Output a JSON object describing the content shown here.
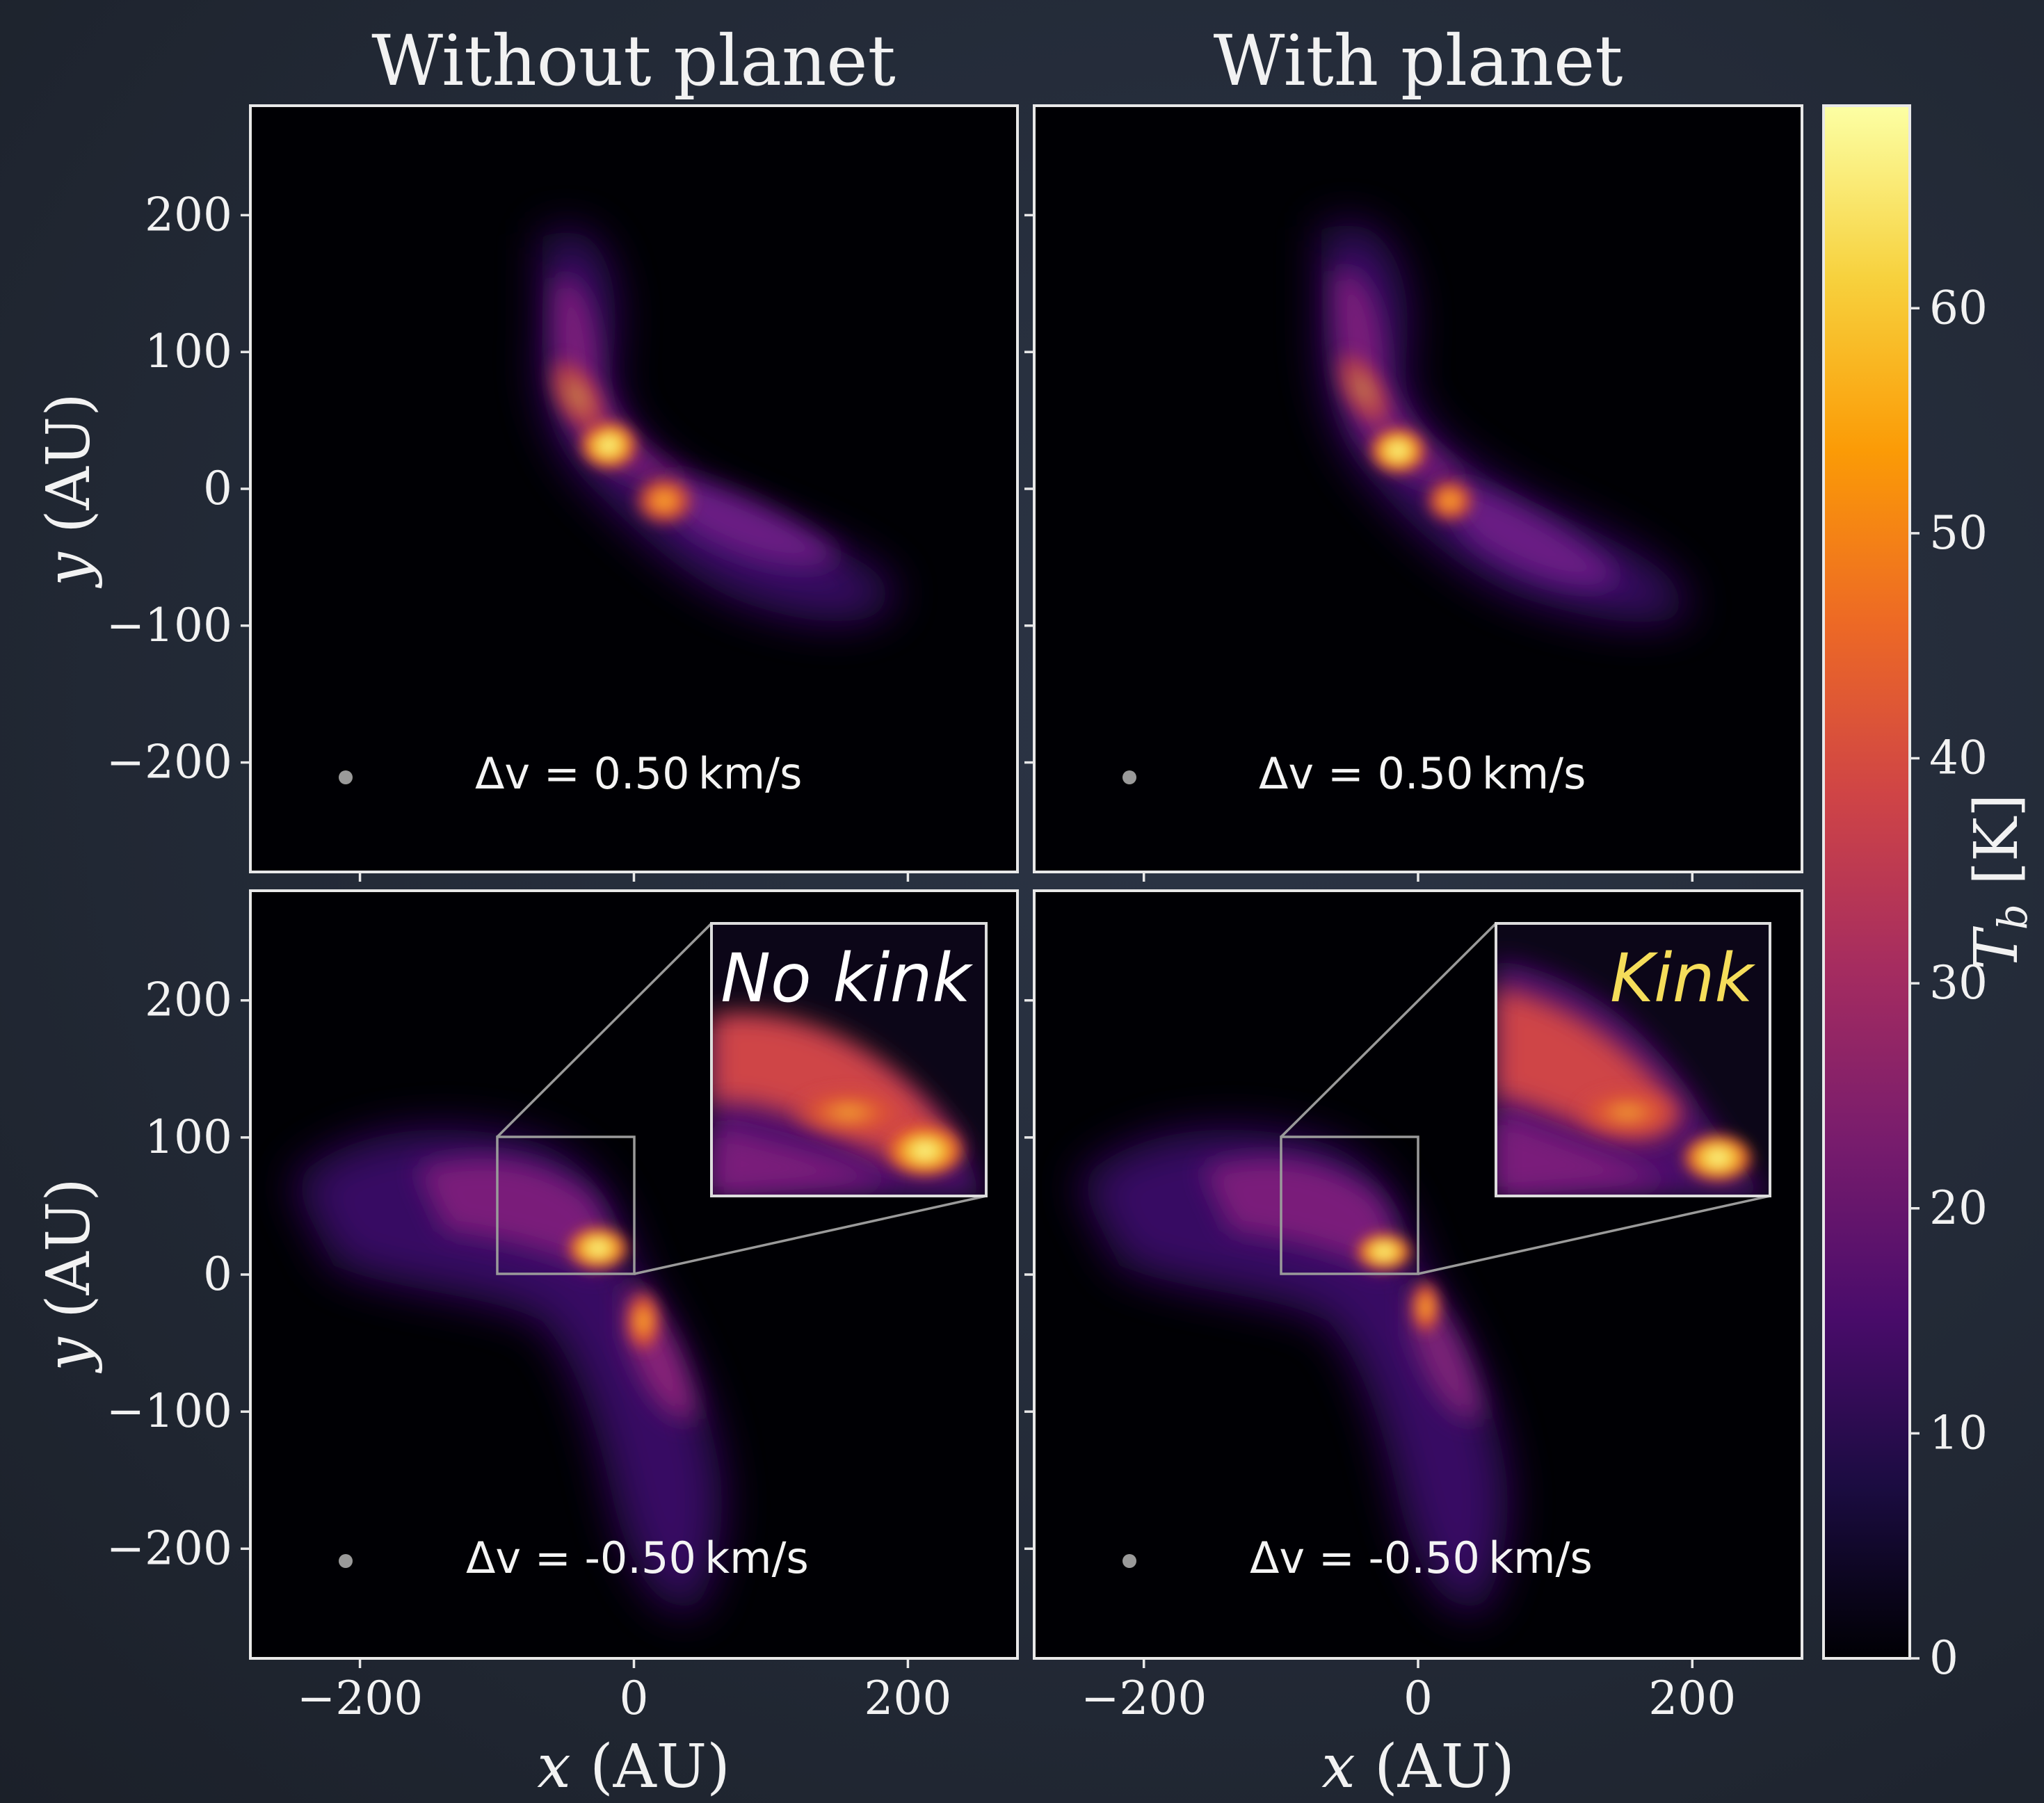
{
  "column_titles": [
    "Without planet",
    "With planet"
  ],
  "inset_labels": {
    "no_kink": {
      "text": "No kink",
      "color": "#ffffff"
    },
    "kink": {
      "text": "Kink",
      "color": "#f5dd5a"
    }
  },
  "velocity_labels": {
    "top": "Δv = 0.50 km/s",
    "bottom": "Δv = -0.50 km/s"
  },
  "axes": {
    "xlabel_var": "x",
    "xlabel_unit": " (AU)",
    "ylabel_var": "y",
    "ylabel_unit": " (AU)",
    "xlim": [
      -280,
      280
    ],
    "ylim": [
      -280,
      280
    ],
    "x_ticks": [
      -200,
      0,
      200
    ],
    "y_ticks": [
      -200,
      -100,
      0,
      100,
      200
    ],
    "x_tick_labels": [
      "−200",
      "0",
      "200"
    ],
    "y_tick_labels": [
      "−200",
      "−100",
      "0",
      "100",
      "200"
    ]
  },
  "colorbar": {
    "label_var": "T",
    "label_sub": "b",
    "label_unit": " [K]",
    "range": [
      0,
      69
    ],
    "ticks": [
      0,
      10,
      20,
      30,
      40,
      50,
      60
    ],
    "tick_labels": [
      "0",
      "10",
      "20",
      "30",
      "40",
      "50",
      "60"
    ],
    "colormap": "inferno",
    "colormap_stops": [
      "#000004",
      "#1b0c41",
      "#4a0c6b",
      "#781c6d",
      "#a52c60",
      "#cf4446",
      "#ed6925",
      "#fb9b06",
      "#f7d13d",
      "#fcffa4"
    ]
  },
  "chart_data": [
    {
      "type": "heatmap",
      "title": "Without planet",
      "xlabel": "x (AU)",
      "ylabel": "y (AU)",
      "xlim": [
        -280,
        280
      ],
      "ylim": [
        -280,
        280
      ],
      "velocity_channel": "Δv = 0.50 km/s",
      "value_unit": "K",
      "peaks": [
        {
          "x": -20,
          "y": 30,
          "value": 64
        },
        {
          "x": 20,
          "y": -10,
          "value": 52
        }
      ]
    },
    {
      "type": "heatmap",
      "title": "With planet",
      "xlabel": "x (AU)",
      "ylabel": "y (AU)",
      "xlim": [
        -280,
        280
      ],
      "ylim": [
        -280,
        280
      ],
      "velocity_channel": "Δv = 0.50 km/s",
      "value_unit": "K",
      "peaks": [
        {
          "x": -20,
          "y": 30,
          "value": 66
        },
        {
          "x": 20,
          "y": -5,
          "value": 50
        }
      ]
    },
    {
      "type": "heatmap",
      "title": "",
      "xlabel": "x (AU)",
      "ylabel": "y (AU)",
      "xlim": [
        -280,
        280
      ],
      "ylim": [
        -280,
        280
      ],
      "velocity_channel": "Δv = -0.50 km/s",
      "value_unit": "K",
      "zoom_region": {
        "x": [
          -100,
          0
        ],
        "y": [
          0,
          100
        ]
      },
      "inset_label": "No kink",
      "peaks": [
        {
          "x": -20,
          "y": 15,
          "value": 65
        },
        {
          "x": 15,
          "y": -30,
          "value": 45
        }
      ]
    },
    {
      "type": "heatmap",
      "title": "",
      "xlabel": "x (AU)",
      "ylabel": "y (AU)",
      "xlim": [
        -280,
        280
      ],
      "ylim": [
        -280,
        280
      ],
      "velocity_channel": "Δv = -0.50 km/s",
      "value_unit": "K",
      "zoom_region": {
        "x": [
          -100,
          0
        ],
        "y": [
          0,
          100
        ]
      },
      "inset_label": "Kink",
      "peaks": [
        {
          "x": -20,
          "y": 15,
          "value": 66
        },
        {
          "x": 15,
          "y": -25,
          "value": 42
        }
      ]
    }
  ]
}
